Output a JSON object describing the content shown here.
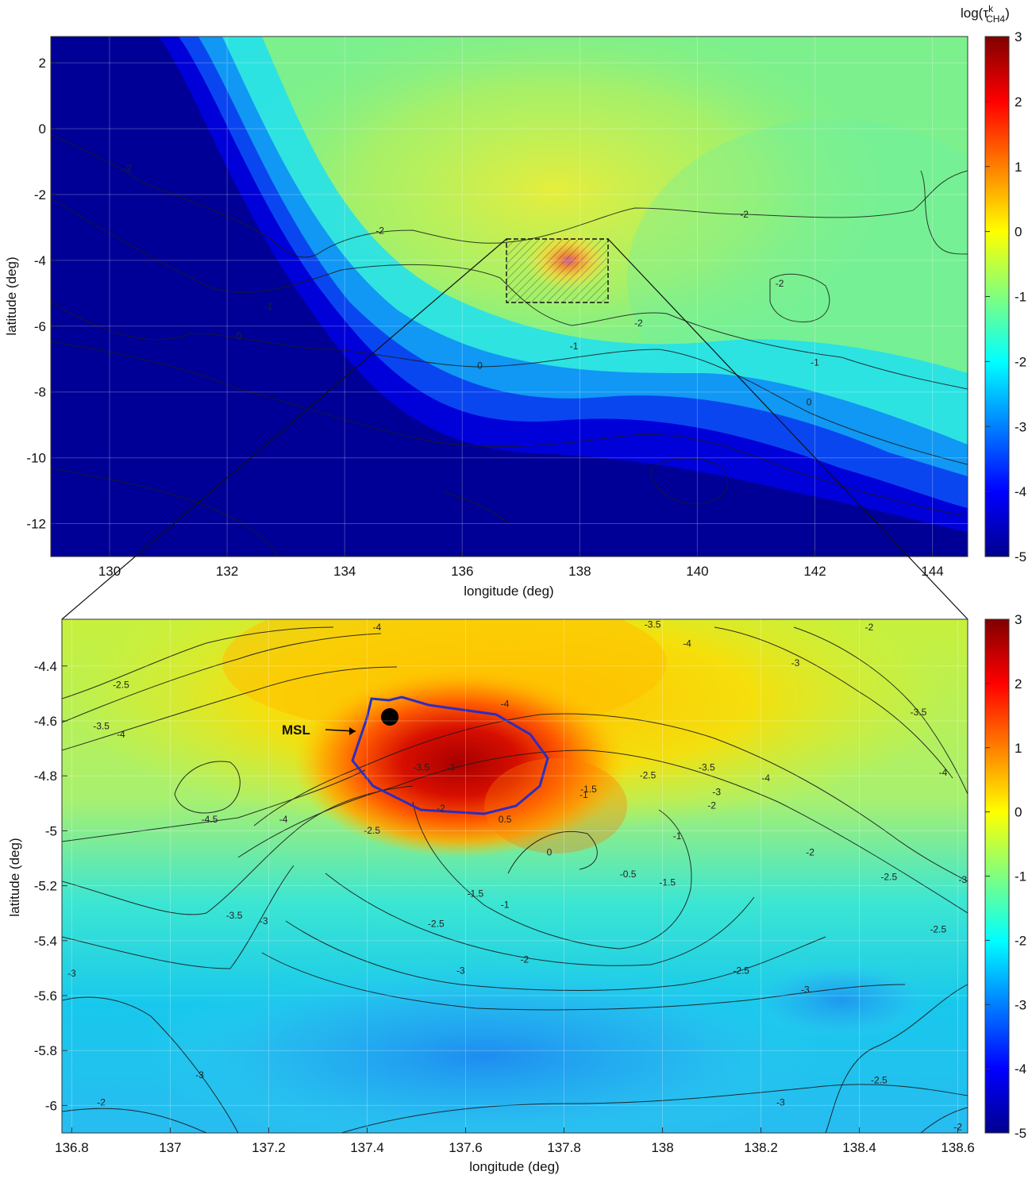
{
  "chart_data": [
    {
      "type": "heatmap",
      "panel": "overview",
      "xlabel": "longitude (deg)",
      "ylabel": "latitude (deg)",
      "xlim": [
        129,
        144.6
      ],
      "ylim": [
        -13,
        2.8
      ],
      "xticks": [
        130,
        132,
        134,
        136,
        138,
        140,
        142,
        144
      ],
      "yticks": [
        2,
        0,
        -2,
        -4,
        -6,
        -8,
        -10,
        -12
      ],
      "colorbar": {
        "title": "log(τ",
        "title_sup": "k",
        "title_sub": "CH4",
        "title_close": ")",
        "range": [
          -5,
          3
        ],
        "ticks": [
          3,
          2,
          1,
          0,
          -1,
          -2,
          -3,
          -4,
          -5
        ]
      },
      "inset_box": {
        "lon": [
          136.8,
          138.6
        ],
        "lat": [
          -5.4,
          -3.45
        ]
      },
      "peak": {
        "lon": 137.8,
        "lat": -4.2
      },
      "contour_labels": [
        {
          "text": "-2",
          "x": 130.3,
          "y": -1.3
        },
        {
          "text": "-2",
          "x": 134.6,
          "y": -3.2
        },
        {
          "text": "-1",
          "x": 132.7,
          "y": -5.5
        },
        {
          "text": "0",
          "x": 132.2,
          "y": -6.4
        },
        {
          "text": "-2",
          "x": 140.8,
          "y": -2.7
        },
        {
          "text": "-2",
          "x": 141.4,
          "y": -4.8
        },
        {
          "text": "-2",
          "x": 139.0,
          "y": -6.0
        },
        {
          "text": "-1",
          "x": 137.9,
          "y": -6.7
        },
        {
          "text": "0",
          "x": 136.3,
          "y": -7.3
        },
        {
          "text": "-1",
          "x": 142.0,
          "y": -7.2
        },
        {
          "text": "0",
          "x": 141.9,
          "y": -8.4
        }
      ]
    },
    {
      "type": "heatmap",
      "panel": "zoom",
      "xlabel": "longitude (deg)",
      "ylabel": "latitude (deg)",
      "xlim": [
        136.78,
        138.62
      ],
      "ylim": [
        -6.1,
        -4.23
      ],
      "xticks": [
        "136.8",
        "137",
        "137.2",
        "137.4",
        "137.6",
        "137.8",
        "138",
        "138.2",
        "138.4",
        "138.6"
      ],
      "yticks": [
        "-4.4",
        "-4.6",
        "-4.8",
        "-5",
        "-5.2",
        "-5.4",
        "-5.6",
        "-5.8",
        "-6"
      ],
      "colorbar": {
        "range": [
          -5,
          3
        ],
        "ticks": [
          3,
          2,
          1,
          0,
          -1,
          -2,
          -3,
          -4,
          -5
        ]
      },
      "annotation": {
        "text": "MSL",
        "lon": 137.45,
        "lat": -4.59
      },
      "region_outline_color": "#2d2dbe",
      "contour_labels": [
        {
          "text": "-4",
          "x": 137.42,
          "y": -4.27
        },
        {
          "text": "-3.5",
          "x": 137.98,
          "y": -4.26
        },
        {
          "text": "-4",
          "x": 138.05,
          "y": -4.33
        },
        {
          "text": "-3",
          "x": 138.27,
          "y": -4.4
        },
        {
          "text": "-2",
          "x": 138.42,
          "y": -4.27
        },
        {
          "text": "-2.5",
          "x": 136.9,
          "y": -4.48
        },
        {
          "text": "-3.5",
          "x": 136.86,
          "y": -4.63
        },
        {
          "text": "-4",
          "x": 136.9,
          "y": -4.66
        },
        {
          "text": "-3.5",
          "x": 138.52,
          "y": -4.58
        },
        {
          "text": "-4",
          "x": 138.57,
          "y": -4.8
        },
        {
          "text": "-4",
          "x": 137.68,
          "y": -4.55
        },
        {
          "text": "-3.5",
          "x": 137.51,
          "y": -4.78
        },
        {
          "text": "-3",
          "x": 137.57,
          "y": -4.78
        },
        {
          "text": "-2",
          "x": 137.55,
          "y": -4.93
        },
        {
          "text": "-2.5",
          "x": 137.41,
          "y": -5.01
        },
        {
          "text": "-4.5",
          "x": 137.08,
          "y": -4.97
        },
        {
          "text": "-4",
          "x": 137.23,
          "y": -4.97
        },
        {
          "text": "0.5",
          "x": 137.68,
          "y": -4.97
        },
        {
          "text": "0",
          "x": 137.77,
          "y": -5.09
        },
        {
          "text": "-1.5",
          "x": 137.85,
          "y": -4.86
        },
        {
          "text": "-1",
          "x": 137.84,
          "y": -4.88
        },
        {
          "text": "-2.5",
          "x": 137.97,
          "y": -4.81
        },
        {
          "text": "-3.5",
          "x": 138.09,
          "y": -4.78
        },
        {
          "text": "-4",
          "x": 138.21,
          "y": -4.82
        },
        {
          "text": "-3",
          "x": 138.11,
          "y": -4.87
        },
        {
          "text": "-2",
          "x": 138.1,
          "y": -4.92
        },
        {
          "text": "-1",
          "x": 138.03,
          "y": -5.03
        },
        {
          "text": "-2",
          "x": 138.3,
          "y": -5.09
        },
        {
          "text": "-0.5",
          "x": 137.93,
          "y": -5.17
        },
        {
          "text": "-1.5",
          "x": 138.01,
          "y": -5.2
        },
        {
          "text": "-1.5",
          "x": 137.62,
          "y": -5.24
        },
        {
          "text": "-1",
          "x": 137.68,
          "y": -5.28
        },
        {
          "text": "-2.5",
          "x": 138.46,
          "y": -5.18
        },
        {
          "text": "-3",
          "x": 138.61,
          "y": -5.19
        },
        {
          "text": "-2.5",
          "x": 138.56,
          "y": -5.37
        },
        {
          "text": "-3.5",
          "x": 137.13,
          "y": -5.32
        },
        {
          "text": "-3",
          "x": 137.19,
          "y": -5.34
        },
        {
          "text": "-2.5",
          "x": 137.54,
          "y": -5.35
        },
        {
          "text": "-2",
          "x": 137.72,
          "y": -5.48
        },
        {
          "text": "-3",
          "x": 137.59,
          "y": -5.52
        },
        {
          "text": "-2.5",
          "x": 138.16,
          "y": -5.52
        },
        {
          "text": "-3",
          "x": 138.29,
          "y": -5.59
        },
        {
          "text": "-3",
          "x": 136.8,
          "y": -5.53
        },
        {
          "text": "-3",
          "x": 137.06,
          "y": -5.9
        },
        {
          "text": "-2.5",
          "x": 138.44,
          "y": -5.92
        },
        {
          "text": "-3",
          "x": 138.24,
          "y": -6.0
        },
        {
          "text": "-2",
          "x": 136.86,
          "y": -6.0
        },
        {
          "text": "-2",
          "x": 138.6,
          "y": -6.09
        }
      ]
    }
  ]
}
